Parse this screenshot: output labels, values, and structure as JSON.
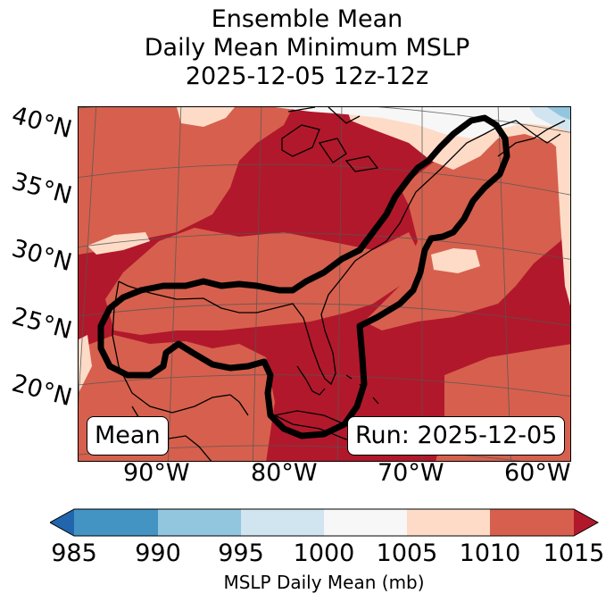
{
  "title": {
    "line1": "Ensemble Mean",
    "line2": "Daily Mean Minimum MSLP",
    "line3": "2025-12-05 12z-12z"
  },
  "map": {
    "lat_labels": [
      "40°N",
      "35°N",
      "30°N",
      "25°N",
      "20°N"
    ],
    "lon_labels": [
      "90°W",
      "80°W",
      "70°W",
      "60°W"
    ],
    "mean_box": "Mean",
    "run_box": "Run: 2025-12-05",
    "colors": {
      "ge1010": "#b2182b",
      "r1005_1010": "#d6604d",
      "r1000_1005": "#fddbc7",
      "r995_1000": "#f7f7f7",
      "r990_995": "#d1e5f0",
      "r985_990": "#92c5de",
      "lt985": "#4393c3"
    }
  },
  "colorbar": {
    "label": "MSLP Daily Mean (mb)",
    "ticks": [
      "985",
      "990",
      "995",
      "1000",
      "1005",
      "1010",
      "1015"
    ],
    "colors": [
      "#4393c3",
      "#92c5de",
      "#d1e5f0",
      "#f7f7f7",
      "#fddbc7",
      "#d6604d"
    ],
    "under_color": "#2166ac",
    "over_color": "#b2182b"
  }
}
